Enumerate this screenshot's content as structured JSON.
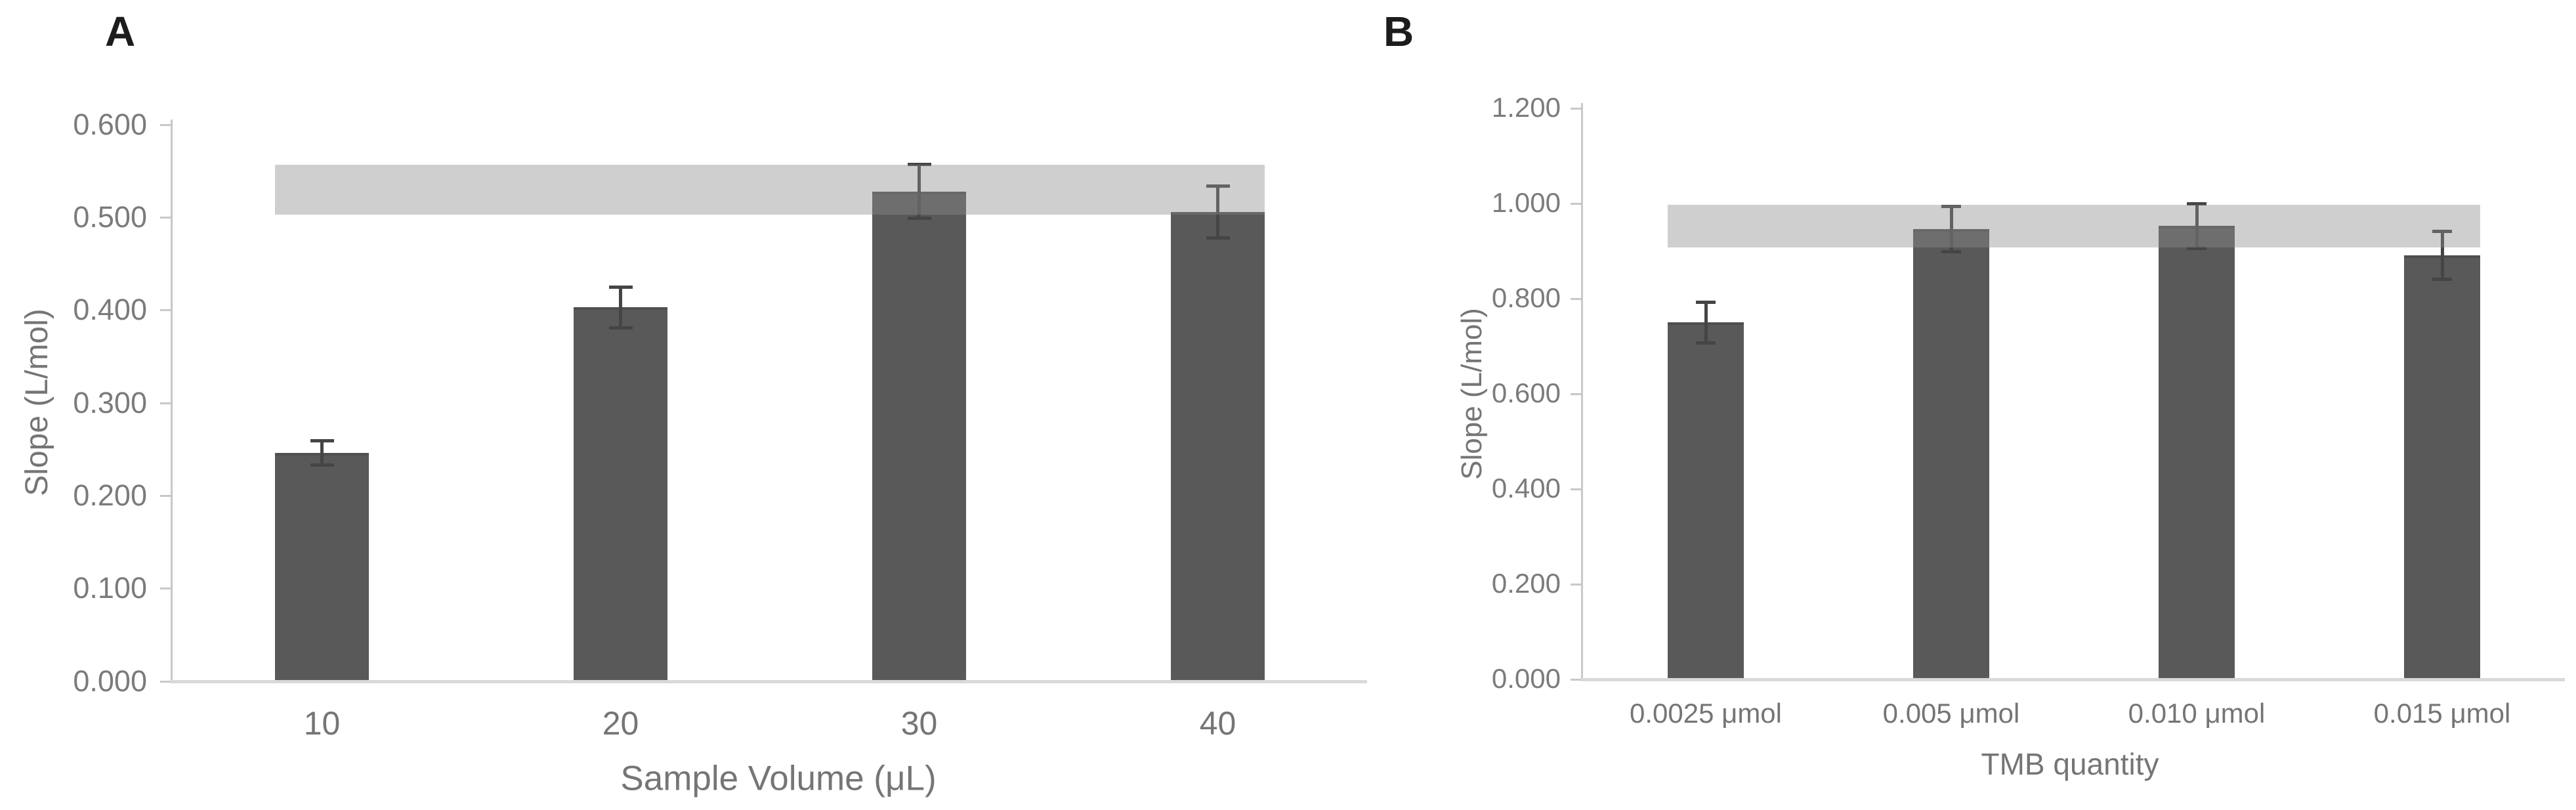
{
  "figure": {
    "background": "#ffffff"
  },
  "style": {
    "bar_color": "#595959",
    "error_color": "#454545",
    "band_color": "#8c8c8c",
    "band_opacity": 0.42,
    "axis_line_color": "#c8c8c8",
    "baseline_color": "#d9d9d9",
    "tick_text_color": "#7b7b7b",
    "axis_title_color": "#757575",
    "panel_label_color": "#1c1c1c"
  },
  "chart_data": [
    {
      "type": "bar",
      "panel_label": "A",
      "title": "",
      "xlabel": "Sample Volume (μL)",
      "ylabel": "Slope (L/mol)",
      "categories": [
        "10",
        "20",
        "30",
        "40"
      ],
      "values": [
        0.246,
        0.403,
        0.528,
        0.506
      ],
      "error_bars": [
        0.013,
        0.022,
        0.029,
        0.028
      ],
      "reference_band": {
        "low": 0.503,
        "high": 0.557
      },
      "ylim": [
        0,
        0.6
      ],
      "yticks": [
        {
          "label": "0.600",
          "value": 0.6
        },
        {
          "label": "0.500",
          "value": 0.5
        },
        {
          "label": "0.400",
          "value": 0.4
        },
        {
          "label": "0.300",
          "value": 0.3
        },
        {
          "label": "0.200",
          "value": 0.2
        },
        {
          "label": "0.100",
          "value": 0.1
        },
        {
          "label": "0.000",
          "value": 0.0
        }
      ],
      "grid": false,
      "legend": null
    },
    {
      "type": "bar",
      "panel_label": "B",
      "title": "",
      "xlabel": "TMB quantity",
      "ylabel": "Slope (L/mol)",
      "categories": [
        "0.0025 μmol",
        "0.005 μmol",
        "0.010 μmol",
        "0.015 μmol"
      ],
      "values": [
        0.75,
        0.946,
        0.953,
        0.891
      ],
      "error_bars": [
        0.043,
        0.048,
        0.047,
        0.05
      ],
      "reference_band": {
        "low": 0.908,
        "high": 0.997
      },
      "ylim": [
        0,
        1.2
      ],
      "yticks": [
        {
          "label": "1.200",
          "value": 1.2
        },
        {
          "label": "1.000",
          "value": 1.0
        },
        {
          "label": "0.800",
          "value": 0.8
        },
        {
          "label": "0.600",
          "value": 0.6
        },
        {
          "label": "0.400",
          "value": 0.4
        },
        {
          "label": "0.200",
          "value": 0.2
        },
        {
          "label": "0.000",
          "value": 0.0
        }
      ],
      "grid": false,
      "legend": null
    }
  ]
}
